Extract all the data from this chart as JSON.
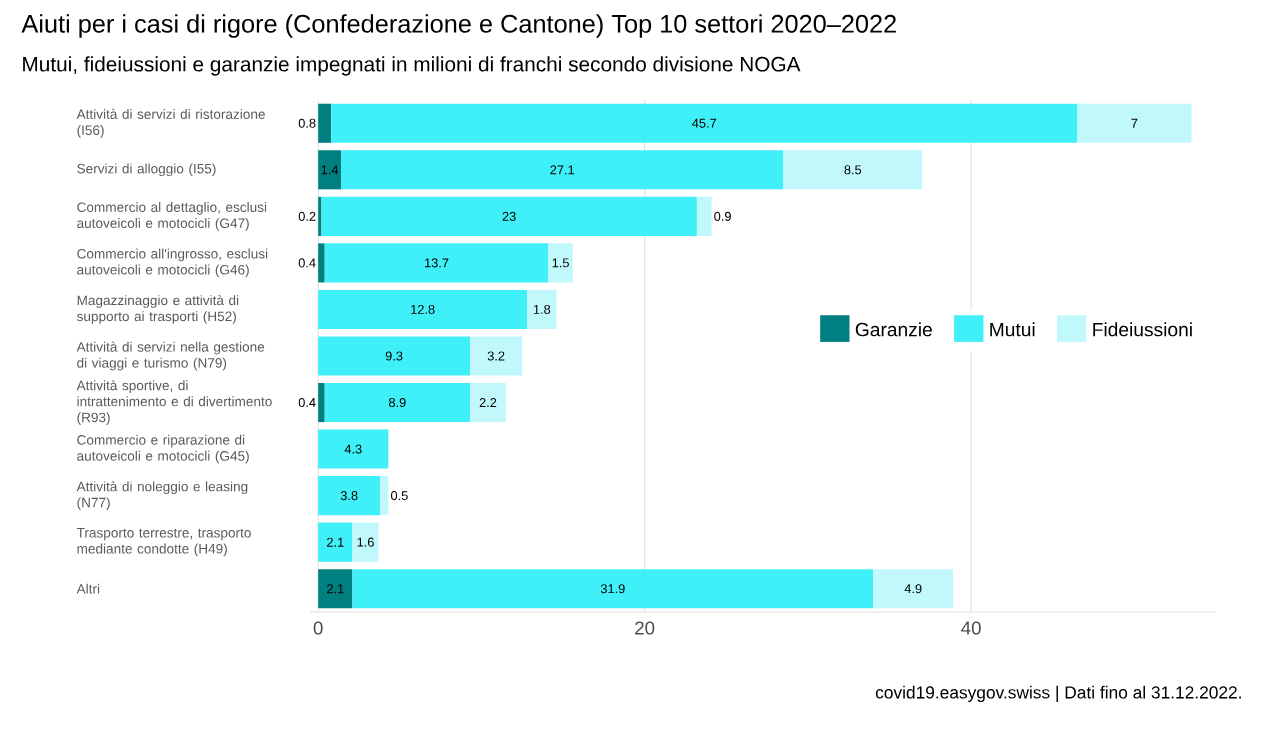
{
  "chart_data": {
    "type": "bar",
    "orientation": "horizontal",
    "stacked": true,
    "title": "Aiuti per i casi di rigore (Confederazione e Cantone) Top 10 settori 2020–2022",
    "subtitle": "Mutui, fideiussioni e garanzie impegnati in milioni di franchi secondo divisione NOGA",
    "categories": [
      "Attività di servizi di ristorazione (I56)",
      "Servizi di alloggio (I55)",
      "Commercio al dettaglio, esclusi autoveicoli e motocicli (G47)",
      "Commercio all'ingrosso, esclusi autoveicoli e motocicli (G46)",
      "Magazzinaggio e attività di supporto ai trasporti (H52)",
      "Attività di servizi nella gestione di viaggi e turismo (N79)",
      "Attività sportive, di intrattenimento e di divertimento (R93)",
      "Commercio e riparazione di autoveicoli e motocicli (G45)",
      "Attività di noleggio e leasing (N77)",
      "Trasporto terrestre, trasporto mediante condotte (H49)",
      "Altri"
    ],
    "series": [
      {
        "name": "Garanzie",
        "color": "#007f80",
        "values": [
          0.8,
          1.4,
          0.2,
          0.4,
          null,
          null,
          0.4,
          null,
          null,
          null,
          2.1
        ]
      },
      {
        "name": "Mutui",
        "color": "#40f0f8",
        "values": [
          45.7,
          27.1,
          23,
          13.7,
          12.8,
          9.3,
          8.9,
          4.3,
          3.8,
          2.1,
          31.9
        ]
      },
      {
        "name": "Fideiussioni",
        "color": "#c0f8fc",
        "values": [
          7,
          8.5,
          0.9,
          1.5,
          1.8,
          3.2,
          2.2,
          null,
          0.5,
          1.6,
          4.9
        ]
      }
    ],
    "xlim": [
      -0.5,
      55
    ],
    "xticks": [
      0,
      20,
      40
    ],
    "grid": "x",
    "legend": "right",
    "data_labels": true,
    "annotations": [
      "covid19.easygov.swiss | Dati fino al 31.12.2022."
    ]
  }
}
